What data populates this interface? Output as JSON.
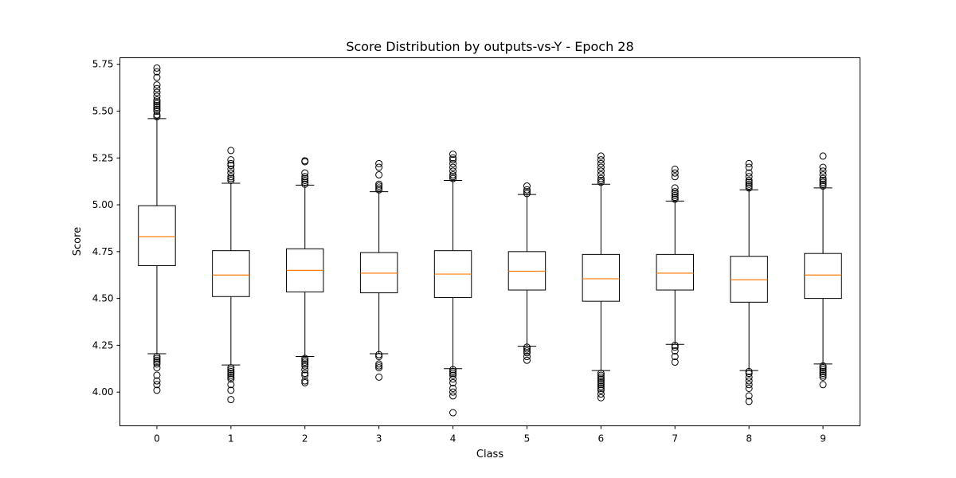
{
  "chart_data": {
    "type": "box",
    "title": "Score Distribution by outputs-vs-Y - Epoch 28",
    "xlabel": "Class",
    "ylabel": "Score",
    "ylim": [
      3.82,
      5.785
    ],
    "yticks": [
      "4.00",
      "4.25",
      "4.50",
      "4.75",
      "5.00",
      "5.25",
      "5.50",
      "5.75"
    ],
    "categories": [
      "0",
      "1",
      "2",
      "3",
      "4",
      "5",
      "6",
      "7",
      "8",
      "9"
    ],
    "grid": false,
    "colors": {
      "median": "#ff7f0e",
      "box": "#000000"
    },
    "boxes": [
      {
        "category": "0",
        "q1": 4.675,
        "median": 4.83,
        "q3": 4.995,
        "whisker_low": 4.205,
        "whisker_high": 5.46,
        "outliers": [
          4.01,
          4.04,
          4.06,
          4.09,
          4.13,
          4.15,
          4.16,
          4.17,
          4.18,
          4.19,
          5.47,
          5.48,
          5.5,
          5.51,
          5.52,
          5.53,
          5.54,
          5.55,
          5.56,
          5.58,
          5.6,
          5.62,
          5.64,
          5.68,
          5.71,
          5.73
        ]
      },
      {
        "category": "1",
        "q1": 4.51,
        "median": 4.625,
        "q3": 4.755,
        "whisker_low": 4.145,
        "whisker_high": 5.115,
        "outliers": [
          3.96,
          4.01,
          4.04,
          4.07,
          4.08,
          4.09,
          4.1,
          4.11,
          4.12,
          4.13,
          5.13,
          5.14,
          5.15,
          5.17,
          5.19,
          5.21,
          5.22,
          5.24,
          5.29
        ]
      },
      {
        "category": "2",
        "q1": 4.535,
        "median": 4.65,
        "q3": 4.765,
        "whisker_low": 4.19,
        "whisker_high": 5.105,
        "outliers": [
          4.05,
          4.06,
          4.09,
          4.1,
          4.12,
          4.14,
          4.15,
          4.16,
          4.17,
          4.18,
          5.11,
          5.12,
          5.13,
          5.14,
          5.15,
          5.17,
          5.23,
          5.235
        ]
      },
      {
        "category": "3",
        "q1": 4.53,
        "median": 4.635,
        "q3": 4.745,
        "whisker_low": 4.205,
        "whisker_high": 5.07,
        "outliers": [
          4.08,
          4.13,
          4.14,
          4.15,
          4.19,
          4.2,
          5.08,
          5.09,
          5.1,
          5.11,
          5.16,
          5.2,
          5.22
        ]
      },
      {
        "category": "4",
        "q1": 4.505,
        "median": 4.63,
        "q3": 4.755,
        "whisker_low": 4.125,
        "whisker_high": 5.13,
        "outliers": [
          3.89,
          3.98,
          4.0,
          4.02,
          4.05,
          4.07,
          4.09,
          4.1,
          4.11,
          4.12,
          5.14,
          5.15,
          5.16,
          5.18,
          5.2,
          5.22,
          5.24,
          5.25,
          5.27
        ]
      },
      {
        "category": "5",
        "q1": 4.545,
        "median": 4.645,
        "q3": 4.75,
        "whisker_low": 4.245,
        "whisker_high": 5.055,
        "outliers": [
          4.17,
          4.19,
          4.21,
          4.22,
          4.23,
          4.24,
          5.06,
          5.07,
          5.08,
          5.1
        ]
      },
      {
        "category": "6",
        "q1": 4.485,
        "median": 4.605,
        "q3": 4.735,
        "whisker_low": 4.115,
        "whisker_high": 5.11,
        "outliers": [
          3.97,
          3.99,
          4.01,
          4.02,
          4.03,
          4.04,
          4.05,
          4.06,
          4.07,
          4.08,
          4.09,
          4.1,
          5.12,
          5.13,
          5.14,
          5.16,
          5.18,
          5.2,
          5.22,
          5.24,
          5.26
        ]
      },
      {
        "category": "7",
        "q1": 4.545,
        "median": 4.635,
        "q3": 4.735,
        "whisker_low": 4.255,
        "whisker_high": 5.02,
        "outliers": [
          4.16,
          4.19,
          4.22,
          4.24,
          4.25,
          5.03,
          5.04,
          5.05,
          5.06,
          5.07,
          5.09,
          5.15,
          5.17,
          5.19
        ]
      },
      {
        "category": "8",
        "q1": 4.48,
        "median": 4.6,
        "q3": 4.725,
        "whisker_low": 4.115,
        "whisker_high": 5.08,
        "outliers": [
          3.95,
          3.98,
          4.02,
          4.04,
          4.06,
          4.08,
          4.1,
          4.11,
          5.09,
          5.1,
          5.11,
          5.12,
          5.13,
          5.15,
          5.17,
          5.2,
          5.22
        ]
      },
      {
        "category": "9",
        "q1": 4.5,
        "median": 4.625,
        "q3": 4.74,
        "whisker_low": 4.15,
        "whisker_high": 5.09,
        "outliers": [
          4.04,
          4.08,
          4.09,
          4.1,
          4.11,
          4.12,
          4.13,
          4.14,
          5.1,
          5.11,
          5.12,
          5.13,
          5.14,
          5.16,
          5.18,
          5.2,
          5.26
        ]
      }
    ]
  }
}
